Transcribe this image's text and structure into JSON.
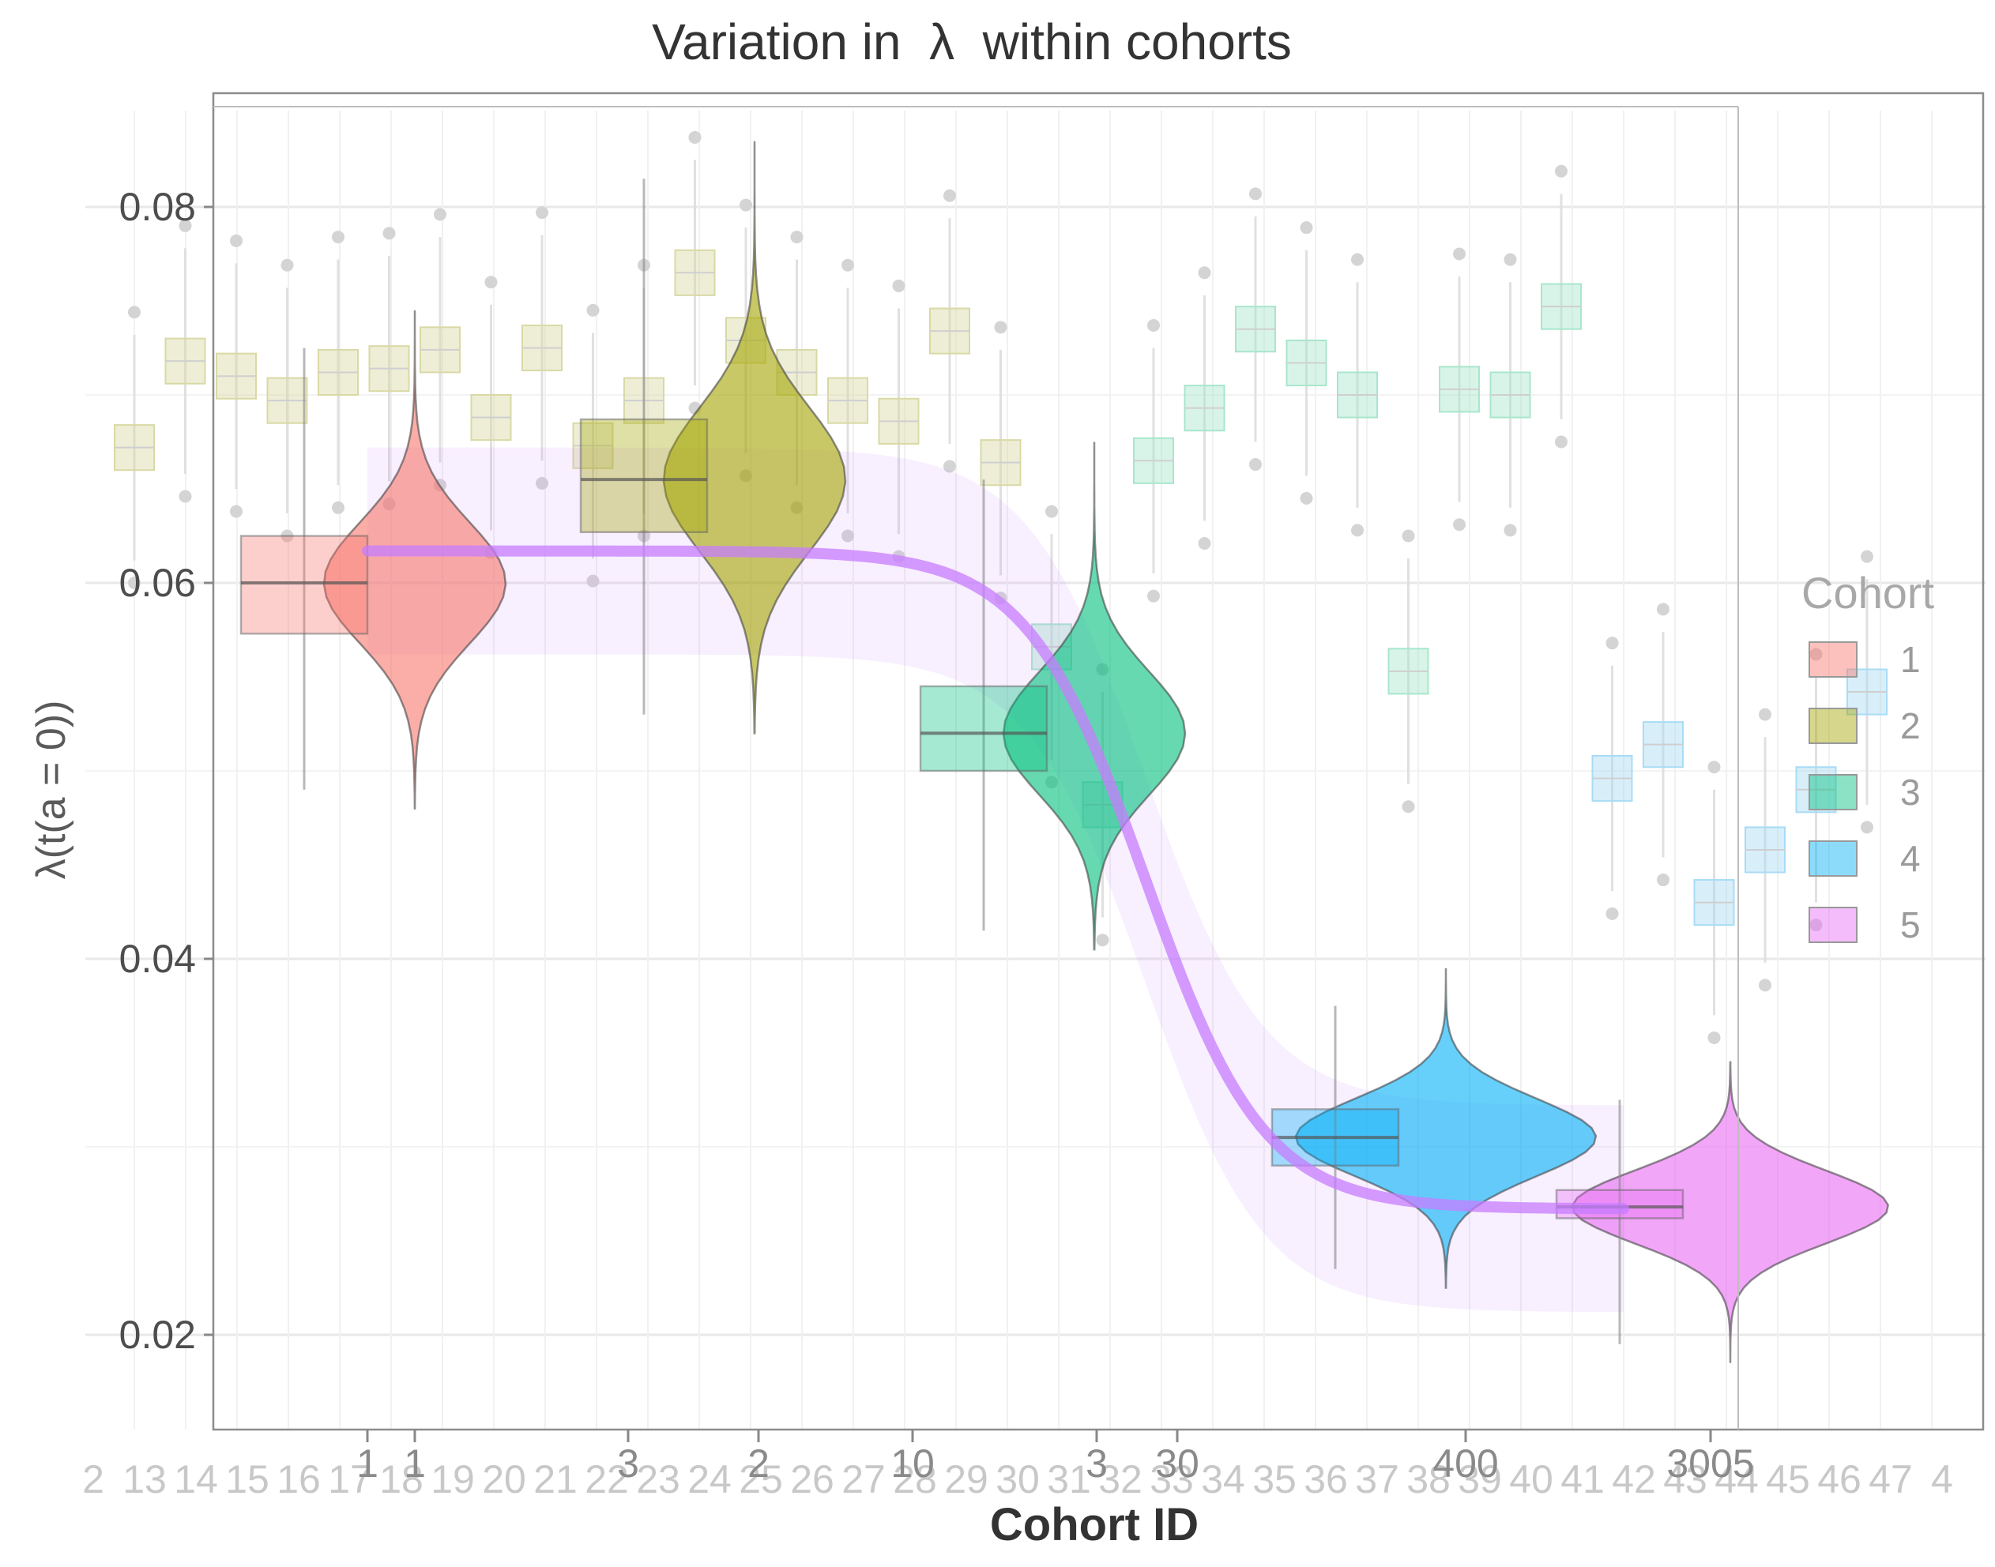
{
  "chart_data": {
    "type": "violin+box",
    "title": "Variation in  λ  within cohorts",
    "xlabel": "Cohort ID",
    "ylabel": "λ(t(a = 0))",
    "ylim": [
      0.0155,
      0.0865
    ],
    "yticks": [
      0.02,
      0.04,
      0.06,
      0.08
    ],
    "ytick_labels": [
      "0.02",
      "0.04",
      "0.06",
      "0.08"
    ],
    "grid": true,
    "background_x_labels": [
      "2",
      "13",
      "14",
      "15",
      "16",
      "17",
      "18",
      "19",
      "20",
      "21",
      "22",
      "23",
      "24",
      "25",
      "26",
      "27",
      "28",
      "29",
      "30",
      "31",
      "32",
      "33",
      "34",
      "35",
      "36",
      "37",
      "38",
      "39",
      "40",
      "41",
      "42",
      "43",
      "44",
      "45",
      "46",
      "47",
      "4"
    ],
    "foreground_x_labels": [
      "1",
      "1",
      "3",
      "2",
      "10",
      "3",
      "30",
      "400",
      "3005"
    ],
    "legend": {
      "title": "Cohort",
      "position": "right",
      "entries": [
        {
          "label": "1",
          "color": "#F8766D"
        },
        {
          "label": "2",
          "color": "#A3A500"
        },
        {
          "label": "3",
          "color": "#00BF7D"
        },
        {
          "label": "4",
          "color": "#00B0F6"
        },
        {
          "label": "5",
          "color": "#E76BF3"
        }
      ]
    },
    "cohorts": [
      {
        "cohort": "1",
        "color": "#F8766D",
        "median": 0.06,
        "q1": 0.0573,
        "q3": 0.0625,
        "min": 0.048,
        "max": 0.0745
      },
      {
        "cohort": "2",
        "color": "#A3A500",
        "median": 0.0655,
        "q1": 0.0627,
        "q3": 0.0687,
        "min": 0.052,
        "max": 0.0835
      },
      {
        "cohort": "3",
        "color": "#00BF7D",
        "median": 0.052,
        "q1": 0.05,
        "q3": 0.0545,
        "min": 0.0405,
        "max": 0.0675
      },
      {
        "cohort": "4",
        "color": "#00B0F6",
        "median": 0.0305,
        "q1": 0.029,
        "q3": 0.032,
        "min": 0.0225,
        "max": 0.0395
      },
      {
        "cohort": "5",
        "color": "#E76BF3",
        "median": 0.0268,
        "q1": 0.0262,
        "q3": 0.0277,
        "min": 0.0185,
        "max": 0.0345
      }
    ],
    "trend": {
      "name": "fitted sigmoid",
      "color": "#C77CFF",
      "high": 0.0617,
      "low": 0.0267,
      "band_width": 0.0055
    }
  }
}
